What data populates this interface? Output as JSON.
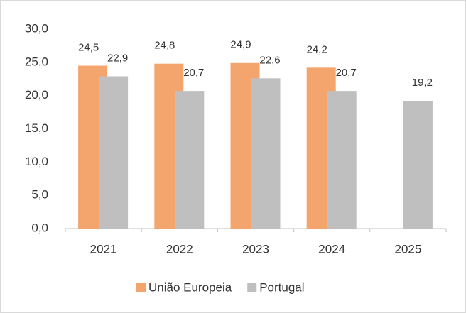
{
  "chart_data": {
    "type": "bar",
    "categories": [
      "2021",
      "2022",
      "2023",
      "2024",
      "2025"
    ],
    "series": [
      {
        "name": "União Europeia",
        "color": "#f4a56e",
        "values": [
          24.5,
          24.8,
          24.9,
          24.2,
          null
        ],
        "value_labels": [
          "24,5",
          "24,8",
          "24,9",
          "24,2",
          null
        ]
      },
      {
        "name": "Portugal",
        "color": "#bfbfbf",
        "values": [
          22.9,
          20.7,
          22.6,
          20.7,
          19.2
        ],
        "value_labels": [
          "22,9",
          "20,7",
          "22,6",
          "20,7",
          "19,2"
        ]
      }
    ],
    "ylim": [
      0,
      30
    ],
    "yticks": [
      {
        "value": 0,
        "label": "0,0"
      },
      {
        "value": 5,
        "label": "5,0"
      },
      {
        "value": 10,
        "label": "10,0"
      },
      {
        "value": 15,
        "label": "15,0"
      },
      {
        "value": 20,
        "label": "20,0"
      },
      {
        "value": 25,
        "label": "25,0"
      },
      {
        "value": 30,
        "label": "30,0"
      }
    ],
    "grid": false,
    "legend": "bottom"
  }
}
